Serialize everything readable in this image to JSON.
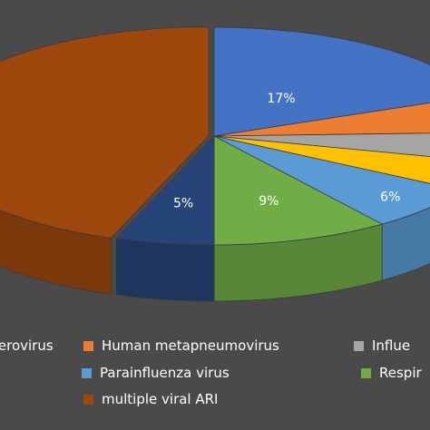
{
  "chart_data": {
    "type": "pie",
    "style": "3d-exploded",
    "title": "",
    "slices": [
      {
        "name": "Enterovirus",
        "value": 17,
        "label": "17%",
        "color": "#4472c4"
      },
      {
        "name": "Human metapneumovirus",
        "value": 5,
        "label": "",
        "color": "#ed7d31"
      },
      {
        "name": "Influenza virus",
        "value": 4,
        "label": "",
        "color": "#a5a5a5"
      },
      {
        "name": "",
        "value": 4,
        "label": "",
        "color": "#ffc000"
      },
      {
        "name": "Parainfluenza virus",
        "value": 6,
        "label": "6%",
        "color": "#5b9bd5"
      },
      {
        "name": "Respiratory syncytial virus",
        "value": 9,
        "label": "9%",
        "color": "#70ad47"
      },
      {
        "name": "",
        "value": 5,
        "label": "5%",
        "color": "#264478"
      },
      {
        "name": "multiple viral ARI",
        "value": 40,
        "label": "",
        "color": "#9e480e"
      }
    ],
    "legend": {
      "placement": "bottom",
      "rows": [
        [
          {
            "label": "Enterovirus",
            "visible_text": "terovirus",
            "color": "#4472c4"
          },
          {
            "label": "Human metapneumovirus",
            "visible_text": "Human metapneumovirus",
            "color": "#ed7d31"
          },
          {
            "label": "Influenza virus",
            "visible_text": "Influe",
            "color": "#a5a5a5"
          }
        ],
        [
          {
            "label": "Parainfluenza virus",
            "visible_text": "Parainfluenza virus",
            "color": "#5b9bd5"
          },
          {
            "label": "Respiratory syncytial virus",
            "visible_text": "Respir",
            "color": "#70ad47"
          }
        ],
        [
          {
            "label": "multiple viral ARI",
            "visible_text": "multiple viral ARI",
            "color": "#9e480e"
          }
        ]
      ]
    }
  }
}
